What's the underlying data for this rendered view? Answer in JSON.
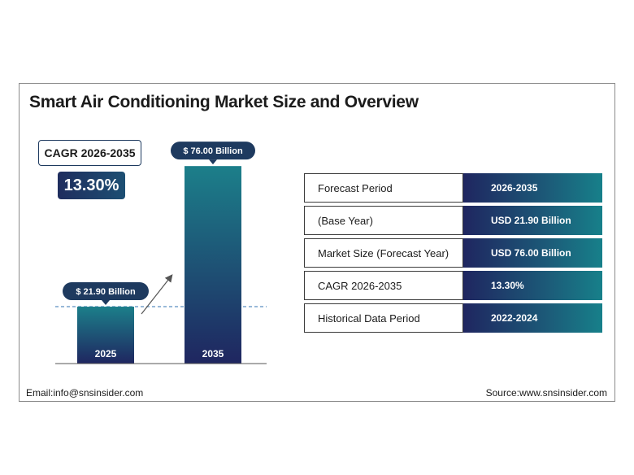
{
  "title": "Smart Air Conditioning Market Size and Overview",
  "cagr": {
    "label": "CAGR 2026-2035",
    "value": "13.30%"
  },
  "colors": {
    "bar_top": "#1c7f8a",
    "bar_bottom": "#1f2660",
    "callout_bg": "#1e3a5f",
    "dashed_line": "#5a8fc0"
  },
  "chart_data": {
    "type": "bar",
    "categories": [
      "2025",
      "2035"
    ],
    "values": [
      21.9,
      76.0
    ],
    "value_labels": [
      "$ 21.90 Billion",
      "$ 76.00 Billion"
    ],
    "ylim": [
      0,
      82
    ],
    "grid": false,
    "reference_line": {
      "value": 21.9,
      "style": "dashed"
    },
    "annotations": [
      "arrow-up-right"
    ]
  },
  "table": {
    "rows": [
      {
        "key": "Forecast Period",
        "value": "2026-2035"
      },
      {
        "key": "(Base Year)",
        "value": "USD 21.90 Billion"
      },
      {
        "key": "Market Size (Forecast Year)",
        "value": "USD 76.00 Billion"
      },
      {
        "key": "CAGR 2026-2035",
        "value": "13.30%"
      },
      {
        "key": "Historical Data Period",
        "value": "2022-2024"
      }
    ]
  },
  "footer": {
    "email": "Email:info@snsinsider.com",
    "source": "Source:www.snsinsider.com"
  }
}
